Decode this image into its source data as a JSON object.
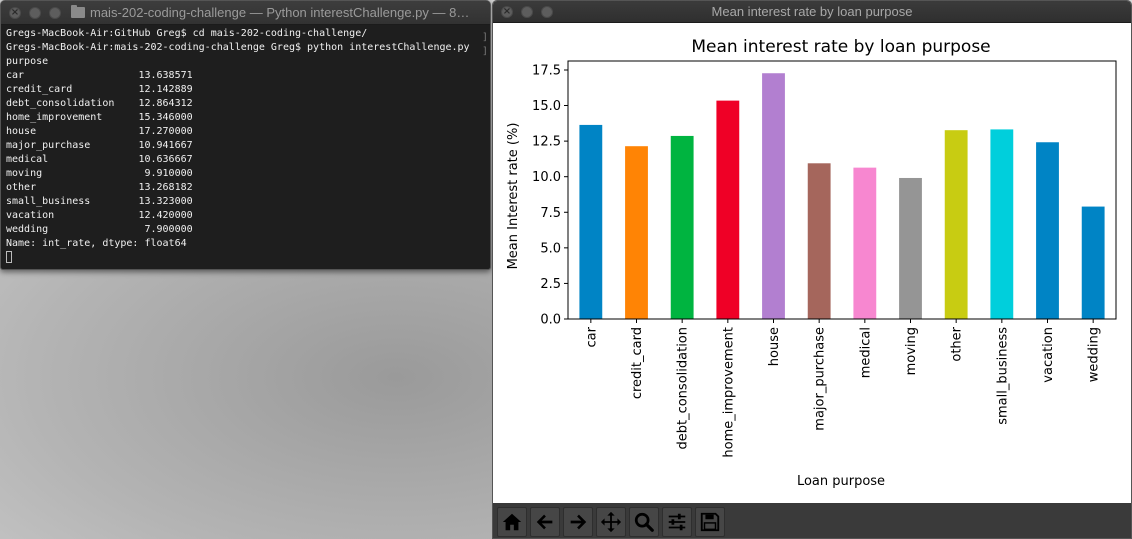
{
  "terminal": {
    "title": "mais-202-coding-challenge — Python interestChallenge.py — 8…",
    "lines": [
      "Gregs-MacBook-Air:GitHub Greg$ cd mais-202-coding-challenge/",
      "Gregs-MacBook-Air:mais-202-coding-challenge Greg$ python interestChallenge.py",
      "purpose",
      "car                   13.638571",
      "credit_card           12.142889",
      "debt_consolidation    12.864312",
      "home_improvement      15.346000",
      "house                 17.270000",
      "major_purchase        10.941667",
      "medical               10.636667",
      "moving                 9.910000",
      "other                 13.268182",
      "small_business        13.323000",
      "vacation              12.420000",
      "wedding                7.900000",
      "Name: int_rate, dtype: float64"
    ],
    "right_bracket": "]"
  },
  "figure_window": {
    "title": "Mean interest rate by loan purpose"
  },
  "toolbar": {
    "buttons": [
      "home-icon",
      "back-arrow-icon",
      "forward-arrow-icon",
      "pan-icon",
      "zoom-icon",
      "configure-subplots-icon",
      "save-icon"
    ]
  },
  "chart_data": {
    "type": "bar",
    "title": "Mean interest rate by loan purpose",
    "xlabel": "Loan purpose",
    "ylabel": "Mean Interest rate (%)",
    "categories": [
      "car",
      "credit_card",
      "debt_consolidation",
      "home_improvement",
      "house",
      "major_purchase",
      "medical",
      "moving",
      "other",
      "small_business",
      "vacation",
      "wedding"
    ],
    "values": [
      13.638571,
      12.142889,
      12.864312,
      15.346,
      17.27,
      10.941667,
      10.636667,
      9.91,
      13.268182,
      13.323,
      12.42,
      7.9
    ],
    "colors": [
      "#0084c5",
      "#ff8405",
      "#00b440",
      "#ef0026",
      "#b27fd0",
      "#a5665c",
      "#f787d0",
      "#959595",
      "#c8cc12",
      "#00cfdc",
      "#0084c5",
      "#0084c5"
    ],
    "yticks": [
      "0.0",
      "2.5",
      "5.0",
      "7.5",
      "10.0",
      "12.5",
      "15.0",
      "17.5"
    ],
    "ytick_values": [
      0,
      2.5,
      5,
      7.5,
      10,
      12.5,
      15,
      17.5
    ],
    "ylim": [
      0,
      18.13
    ],
    "grid": false,
    "legend": false
  }
}
